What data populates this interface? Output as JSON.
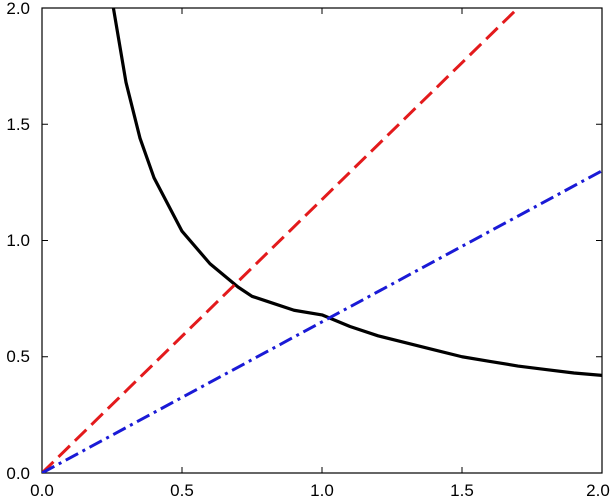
{
  "chart_data": {
    "type": "line",
    "title": "",
    "xlabel": "",
    "ylabel": "",
    "xlim": [
      0,
      2
    ],
    "ylim": [
      0,
      2
    ],
    "grid": false,
    "legend": "none",
    "x_ticks": [
      "0.0",
      "0.5",
      "1.0",
      "1.5",
      "2.0"
    ],
    "y_ticks": [
      "0.0",
      "0.5",
      "1.0",
      "1.5",
      "2.0"
    ],
    "series": [
      {
        "style": "solid",
        "color": "#000000",
        "x": [
          0.255,
          0.3,
          0.35,
          0.4,
          0.5,
          0.6,
          0.7,
          0.75,
          0.8,
          0.9,
          1.0,
          1.1,
          1.2,
          1.3,
          1.4,
          1.5,
          1.6,
          1.7,
          1.8,
          1.9,
          2.0
        ],
        "y": [
          2.0,
          1.68,
          1.44,
          1.27,
          1.04,
          0.9,
          0.8,
          0.76,
          0.74,
          0.7,
          0.68,
          0.63,
          0.59,
          0.56,
          0.53,
          0.5,
          0.48,
          0.46,
          0.445,
          0.43,
          0.42
        ]
      },
      {
        "style": "dashed",
        "color": "#e31a1c",
        "x": [
          0.0,
          1.7
        ],
        "y": [
          0.0,
          2.0
        ]
      },
      {
        "style": "dashdot",
        "color": "#1a1ad6",
        "x": [
          0.0,
          2.0
        ],
        "y": [
          0.0,
          1.3
        ]
      }
    ]
  }
}
